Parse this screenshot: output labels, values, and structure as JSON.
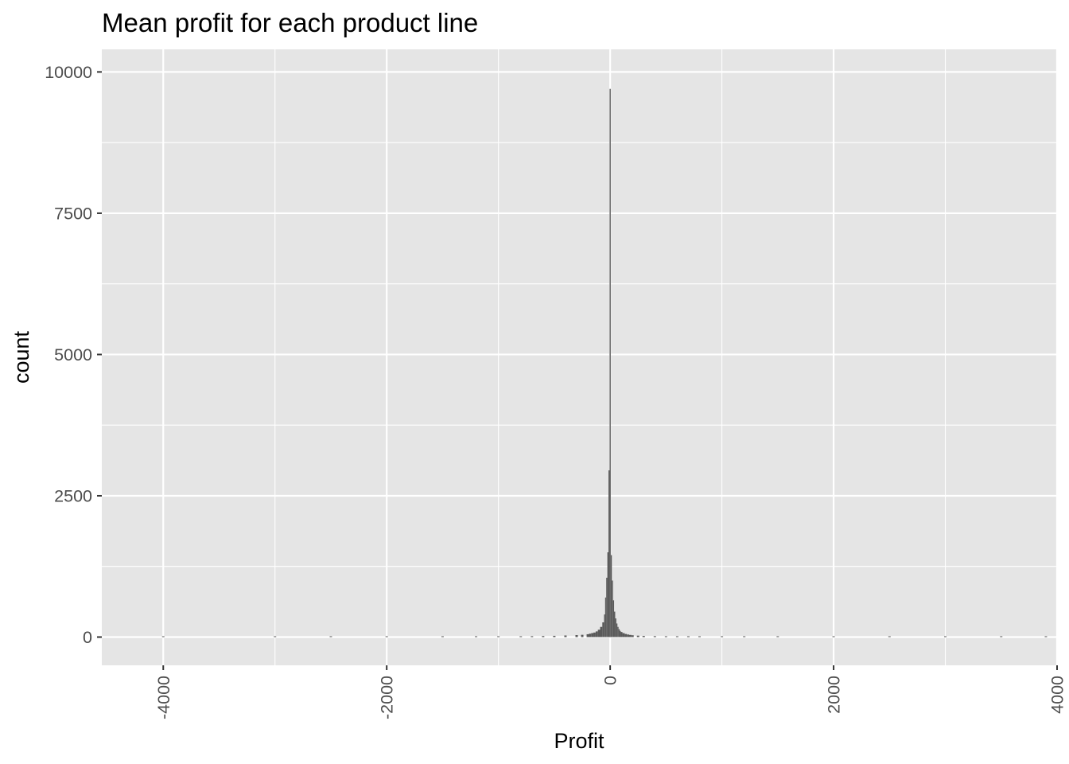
{
  "chart_data": {
    "type": "histogram",
    "title": "Mean profit for each product line",
    "xlabel": "Profit",
    "ylabel": "count",
    "xlim": [
      -4550,
      4000
    ],
    "ylim": [
      -500,
      10400
    ],
    "x_ticks": [
      -4000,
      -2000,
      0,
      2000,
      4000
    ],
    "x_tick_labels": [
      "-4000",
      "-2000",
      "0",
      "2000",
      "4000"
    ],
    "y_ticks": [
      0,
      2500,
      5000,
      7500,
      10000
    ],
    "y_tick_labels": [
      "0",
      "2500",
      "5000",
      "7500",
      "10000"
    ],
    "grid": true,
    "bar_color": "#595959",
    "panel_color": "#e5e5e5",
    "grid_color": "#ffffff",
    "bins": [
      {
        "x": -4000,
        "count": 2
      },
      {
        "x": -3000,
        "count": 3
      },
      {
        "x": -2500,
        "count": 3
      },
      {
        "x": -2000,
        "count": 4
      },
      {
        "x": -1500,
        "count": 5
      },
      {
        "x": -1200,
        "count": 6
      },
      {
        "x": -1000,
        "count": 8
      },
      {
        "x": -800,
        "count": 12
      },
      {
        "x": -700,
        "count": 15
      },
      {
        "x": -600,
        "count": 18
      },
      {
        "x": -500,
        "count": 22
      },
      {
        "x": -400,
        "count": 28
      },
      {
        "x": -300,
        "count": 35
      },
      {
        "x": -250,
        "count": 40
      },
      {
        "x": -200,
        "count": 50
      },
      {
        "x": -180,
        "count": 60
      },
      {
        "x": -160,
        "count": 70
      },
      {
        "x": -140,
        "count": 80
      },
      {
        "x": -120,
        "count": 100
      },
      {
        "x": -100,
        "count": 130
      },
      {
        "x": -80,
        "count": 180
      },
      {
        "x": -60,
        "count": 260
      },
      {
        "x": -50,
        "count": 400
      },
      {
        "x": -40,
        "count": 700
      },
      {
        "x": -30,
        "count": 1050
      },
      {
        "x": -20,
        "count": 1500
      },
      {
        "x": -10,
        "count": 2950
      },
      {
        "x": 0,
        "count": 9700
      },
      {
        "x": 10,
        "count": 1450
      },
      {
        "x": 20,
        "count": 1000
      },
      {
        "x": 30,
        "count": 650
      },
      {
        "x": 40,
        "count": 450
      },
      {
        "x": 50,
        "count": 330
      },
      {
        "x": 60,
        "count": 240
      },
      {
        "x": 70,
        "count": 180
      },
      {
        "x": 80,
        "count": 140
      },
      {
        "x": 90,
        "count": 110
      },
      {
        "x": 100,
        "count": 90
      },
      {
        "x": 120,
        "count": 70
      },
      {
        "x": 140,
        "count": 55
      },
      {
        "x": 160,
        "count": 45
      },
      {
        "x": 180,
        "count": 38
      },
      {
        "x": 200,
        "count": 32
      },
      {
        "x": 250,
        "count": 25
      },
      {
        "x": 300,
        "count": 20
      },
      {
        "x": 400,
        "count": 16
      },
      {
        "x": 500,
        "count": 12
      },
      {
        "x": 600,
        "count": 10
      },
      {
        "x": 700,
        "count": 8
      },
      {
        "x": 800,
        "count": 7
      },
      {
        "x": 1000,
        "count": 5
      },
      {
        "x": 1200,
        "count": 4
      },
      {
        "x": 1500,
        "count": 4
      },
      {
        "x": 2000,
        "count": 3
      },
      {
        "x": 2500,
        "count": 2
      },
      {
        "x": 3000,
        "count": 2
      },
      {
        "x": 3500,
        "count": 2
      },
      {
        "x": 3900,
        "count": 1
      }
    ]
  }
}
